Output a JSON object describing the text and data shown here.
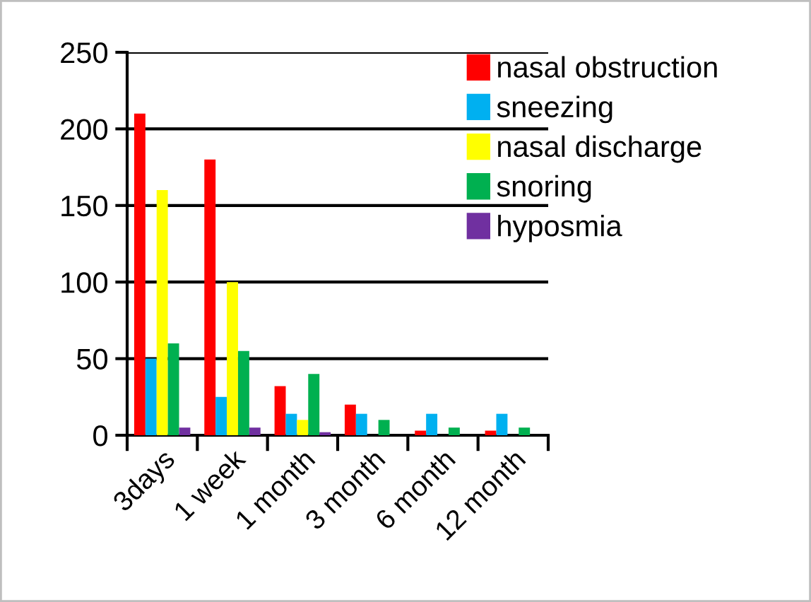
{
  "chart_data": {
    "type": "bar",
    "categories": [
      "3days",
      "1 week",
      "1 month",
      "3 month",
      "6 month",
      "12 month"
    ],
    "series": [
      {
        "name": "nasal obstruction",
        "color": "#ff0000",
        "values": [
          210,
          180,
          32,
          20,
          3,
          3
        ]
      },
      {
        "name": "sneezing",
        "color": "#00b0f0",
        "values": [
          50,
          25,
          14,
          14,
          14,
          14
        ]
      },
      {
        "name": "nasal discharge",
        "color": "#ffff00",
        "values": [
          160,
          100,
          10,
          0,
          0,
          0
        ]
      },
      {
        "name": "snoring",
        "color": "#00b050",
        "values": [
          60,
          55,
          40,
          10,
          5,
          5
        ]
      },
      {
        "name": "hyposmia",
        "color": "#7030a0",
        "values": [
          5,
          5,
          2,
          0,
          0,
          0
        ]
      }
    ],
    "ylim": [
      0,
      250
    ],
    "yticks": [
      0,
      50,
      100,
      150,
      200,
      250
    ],
    "grid": "y",
    "legend": "top right"
  }
}
